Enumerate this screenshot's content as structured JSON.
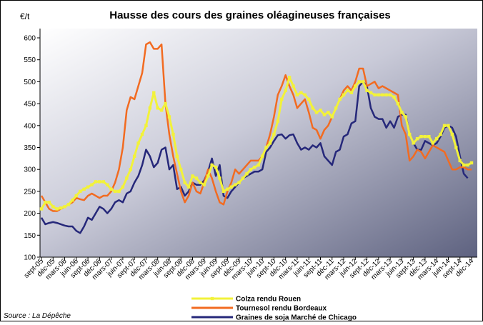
{
  "chart_data": {
    "type": "line",
    "title": "Hausse des cours des graines oléagineuses françaises",
    "ylabel": "€/t",
    "source": "Source : La Dépêche",
    "categories": [
      "sept-05",
      null,
      null,
      "déc-05",
      null,
      null,
      "mars-06",
      null,
      null,
      "juin-06",
      null,
      null,
      "sept-06",
      null,
      null,
      "déc-06",
      null,
      null,
      "mars-07",
      null,
      null,
      "juin-07",
      null,
      null,
      "sept-07",
      null,
      null,
      "déc-07",
      null,
      null,
      "mars-08",
      null,
      null,
      "juin-08",
      null,
      null,
      "sept-08",
      null,
      null,
      "déc-08",
      null,
      null,
      "mars-09",
      null,
      null,
      "juin-09",
      null,
      null,
      "sept-09",
      null,
      null,
      "déc-09",
      null,
      null,
      "mars-10",
      null,
      null,
      "juin-10",
      null,
      null,
      "sept-10",
      null,
      null,
      "déc-10",
      null,
      null,
      "mars-11",
      null,
      null,
      "juin-11",
      null,
      null,
      "sept-11",
      null,
      null,
      "déc-11",
      null,
      null,
      "mars-12",
      null,
      null,
      "juin-12",
      null,
      null,
      "sept-12",
      null,
      null,
      "déc-12",
      null,
      null,
      "mars-13",
      null,
      null,
      "juin-13",
      null,
      null,
      "sept-13",
      null,
      null,
      "déc-13",
      null,
      null,
      "mars-14",
      null,
      null,
      "juin-14",
      null,
      null,
      "sept-14",
      null,
      null,
      "déc-14"
    ],
    "series": [
      {
        "name": "Colza rendu Rouen",
        "color": "#f2f23a",
        "markers": true,
        "values": [
          210,
          225,
          225,
          215,
          210,
          212,
          215,
          220,
          230,
          240,
          250,
          255,
          260,
          265,
          272,
          272,
          272,
          265,
          255,
          250,
          250,
          260,
          280,
          300,
          330,
          360,
          380,
          400,
          440,
          475,
          440,
          435,
          450,
          420,
          380,
          330,
          300,
          270,
          260,
          285,
          280,
          270,
          265,
          285,
          310,
          305,
          280,
          250,
          255,
          260,
          265,
          270,
          280,
          290,
          300,
          305,
          310,
          330,
          350,
          360,
          380,
          410,
          460,
          480,
          510,
          490,
          470,
          475,
          470,
          460,
          440,
          430,
          435,
          425,
          430,
          420,
          440,
          460,
          470,
          480,
          475,
          490,
          500,
          500,
          480,
          475,
          470,
          470,
          470,
          470,
          470,
          465,
          450,
          430,
          420,
          380,
          360,
          370,
          375,
          375,
          375,
          360,
          370,
          380,
          400,
          400,
          380,
          350,
          320,
          310,
          310,
          315
        ]
      },
      {
        "name": "Tournesol rendu Bordeaux",
        "color": "#f26b21",
        "markers": false,
        "values": [
          240,
          225,
          210,
          205,
          205,
          210,
          215,
          220,
          225,
          235,
          232,
          230,
          240,
          245,
          240,
          235,
          240,
          240,
          250,
          270,
          300,
          350,
          435,
          465,
          460,
          490,
          520,
          585,
          590,
          575,
          575,
          585,
          450,
          380,
          330,
          290,
          250,
          225,
          240,
          270,
          250,
          245,
          270,
          300,
          280,
          250,
          225,
          220,
          250,
          270,
          300,
          290,
          300,
          310,
          320,
          320,
          320,
          330,
          350,
          380,
          420,
          470,
          490,
          515,
          490,
          470,
          440,
          450,
          460,
          430,
          395,
          390,
          370,
          390,
          400,
          420,
          440,
          460,
          480,
          490,
          480,
          500,
          530,
          530,
          490,
          495,
          500,
          485,
          490,
          485,
          480,
          475,
          470,
          400,
          380,
          320,
          330,
          345,
          340,
          325,
          340,
          355,
          350,
          345,
          340,
          320,
          300,
          300,
          305,
          305,
          300,
          300
        ]
      },
      {
        "name": "Graines de soja Marché de Chicago",
        "color": "#26287a",
        "markers": false,
        "values": [
          190,
          175,
          178,
          180,
          178,
          175,
          172,
          170,
          170,
          160,
          155,
          170,
          190,
          185,
          200,
          215,
          210,
          200,
          210,
          225,
          230,
          225,
          245,
          250,
          270,
          285,
          310,
          345,
          330,
          305,
          315,
          345,
          350,
          300,
          310,
          255,
          260,
          240,
          250,
          270,
          265,
          265,
          275,
          295,
          325,
          285,
          310,
          240,
          235,
          250,
          260,
          270,
          280,
          285,
          290,
          295,
          295,
          300,
          340,
          350,
          365,
          378,
          380,
          370,
          378,
          380,
          360,
          345,
          350,
          345,
          355,
          350,
          360,
          330,
          320,
          310,
          340,
          345,
          375,
          380,
          405,
          410,
          490,
          500,
          490,
          440,
          420,
          415,
          415,
          395,
          410,
          395,
          420,
          425,
          425,
          380,
          360,
          345,
          345,
          365,
          360,
          355,
          360,
          375,
          395,
          400,
          395,
          375,
          330,
          290,
          280,
          null
        ]
      }
    ],
    "ylim": [
      100,
      600
    ],
    "yticks": [
      100,
      150,
      200,
      250,
      300,
      350,
      400,
      450,
      500,
      550,
      600
    ],
    "grid": false,
    "legend": "bottom"
  }
}
